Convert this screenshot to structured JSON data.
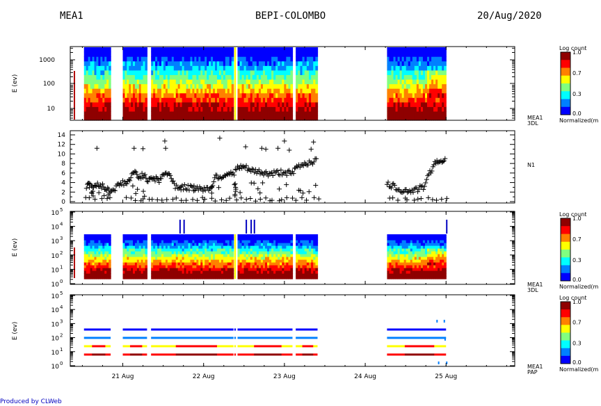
{
  "header": {
    "left": "MEA1",
    "center": "BEPI-COLOMBO",
    "right": "20/Aug/2020"
  },
  "footer": {
    "produced_by": "Produced by CLWeb"
  },
  "colors": {
    "colormap": [
      "#00008f",
      "#0000ff",
      "#0080ff",
      "#00ffff",
      "#80ff80",
      "#ffff00",
      "#ff8000",
      "#ff0000",
      "#8f0000"
    ],
    "marker": "#000000",
    "axis": "#000000"
  },
  "chart_data": [
    {
      "type": "heatmap",
      "panel": 1,
      "ylabel": "E (ev)",
      "yscale": "log",
      "ylim": [
        3,
        3000
      ],
      "yticks": [
        "1000",
        "100",
        "10"
      ],
      "side_label": [
        "MEA1",
        "3DL"
      ],
      "colorbar": {
        "title": "Log count",
        "ticks": [
          "1.0",
          "0.7",
          "0.3",
          "0.0"
        ],
        "unit_label": "Normalized(m"
      },
      "coverage_days": [
        [
          20.52,
          20.85
        ],
        [
          21.0,
          21.3
        ],
        [
          21.35,
          22.37
        ],
        [
          22.38,
          22.4
        ],
        [
          22.42,
          23.1
        ],
        [
          23.14,
          23.41
        ],
        [
          24.27,
          24.29
        ],
        [
          24.27,
          25.0
        ]
      ]
    },
    {
      "type": "scatter",
      "panel": 2,
      "ylabel": "",
      "ylim": [
        0,
        14
      ],
      "yticks": [
        "14",
        "12",
        "10",
        "8",
        "6",
        "4",
        "2",
        "0"
      ],
      "side_label": [
        "N1"
      ],
      "outliers": [
        [
          20.68,
          11.2
        ],
        [
          21.14,
          11.2
        ],
        [
          21.25,
          11.1
        ],
        [
          21.52,
          12.7
        ],
        [
          21.53,
          11.2
        ],
        [
          22.2,
          13.3
        ],
        [
          22.52,
          11.5
        ],
        [
          22.72,
          11.2
        ],
        [
          22.77,
          11.0
        ],
        [
          22.92,
          11.2
        ],
        [
          23.0,
          12.7
        ],
        [
          23.06,
          10.8
        ],
        [
          23.36,
          12.5
        ],
        [
          23.33,
          11.0
        ]
      ],
      "trend": [
        [
          20.55,
          3.1
        ],
        [
          20.6,
          3.5
        ],
        [
          20.65,
          3.0
        ],
        [
          20.7,
          3.8
        ],
        [
          20.75,
          3.2
        ],
        [
          20.8,
          2.6
        ],
        [
          20.85,
          2.2
        ],
        [
          21.0,
          4.0
        ],
        [
          21.05,
          3.8
        ],
        [
          21.1,
          5.0
        ],
        [
          21.15,
          6.2
        ],
        [
          21.2,
          5.2
        ],
        [
          21.25,
          5.6
        ],
        [
          21.3,
          4.6
        ],
        [
          21.35,
          5.2
        ],
        [
          21.4,
          4.8
        ],
        [
          21.45,
          4.4
        ],
        [
          21.5,
          5.8
        ],
        [
          21.55,
          5.8
        ],
        [
          21.6,
          5.2
        ],
        [
          21.65,
          3.2
        ],
        [
          21.75,
          3.0
        ],
        [
          21.85,
          2.8
        ],
        [
          21.95,
          2.8
        ],
        [
          22.05,
          2.6
        ],
        [
          22.1,
          3.2
        ],
        [
          22.15,
          5.4
        ],
        [
          22.22,
          5.2
        ],
        [
          22.3,
          6.0
        ],
        [
          22.35,
          5.6
        ],
        [
          22.42,
          7.0
        ],
        [
          22.5,
          7.2
        ],
        [
          22.6,
          6.4
        ],
        [
          22.7,
          6.2
        ],
        [
          22.8,
          5.8
        ],
        [
          22.9,
          6.0
        ],
        [
          23.0,
          6.2
        ],
        [
          23.1,
          5.8
        ],
        [
          23.15,
          7.2
        ],
        [
          23.25,
          8.0
        ],
        [
          23.35,
          8.4
        ],
        [
          23.41,
          8.8
        ],
        [
          24.27,
          3.6
        ],
        [
          24.35,
          3.2
        ],
        [
          24.45,
          2.4
        ],
        [
          24.55,
          2.2
        ],
        [
          24.65,
          2.6
        ],
        [
          24.72,
          3.0
        ],
        [
          24.8,
          6.0
        ],
        [
          24.85,
          8.0
        ],
        [
          24.9,
          8.2
        ],
        [
          24.95,
          8.8
        ],
        [
          25.0,
          9.2
        ]
      ]
    },
    {
      "type": "heatmap",
      "panel": 3,
      "ylabel": "E (ev)",
      "yscale": "log",
      "ylim": [
        1,
        100000
      ],
      "yticks": [
        "10^5",
        "10^4",
        "10^3",
        "10^2",
        "10^1",
        "10^0"
      ],
      "side_label": [
        "MEA1",
        "3DL"
      ],
      "colorbar": {
        "title": "Log count",
        "ticks": [
          "1.0",
          "0.7",
          "0.3",
          "0.0"
        ],
        "unit_label": "Normalized(m"
      }
    },
    {
      "type": "heatmap",
      "panel": 4,
      "ylabel": "E (ev)",
      "yscale": "log",
      "ylim": [
        1,
        100000
      ],
      "yticks": [
        "10^5",
        "10^4",
        "10^3",
        "10^2",
        "10^1",
        "10^0"
      ],
      "side_label": [
        "MEA1",
        "PAP"
      ],
      "colorbar": {
        "title": "Log count",
        "ticks": [
          "1.0",
          "0.7",
          "0.3",
          "0.0"
        ],
        "unit_label": "Normalized(m"
      },
      "bands_ev": [
        500,
        100,
        30,
        9
      ]
    }
  ],
  "xaxis": {
    "ticks": [
      "21 Aug",
      "22 Aug",
      "23 Aug",
      "24 Aug",
      "25 Aug"
    ],
    "xlim_days": [
      20.35,
      25.85
    ]
  }
}
